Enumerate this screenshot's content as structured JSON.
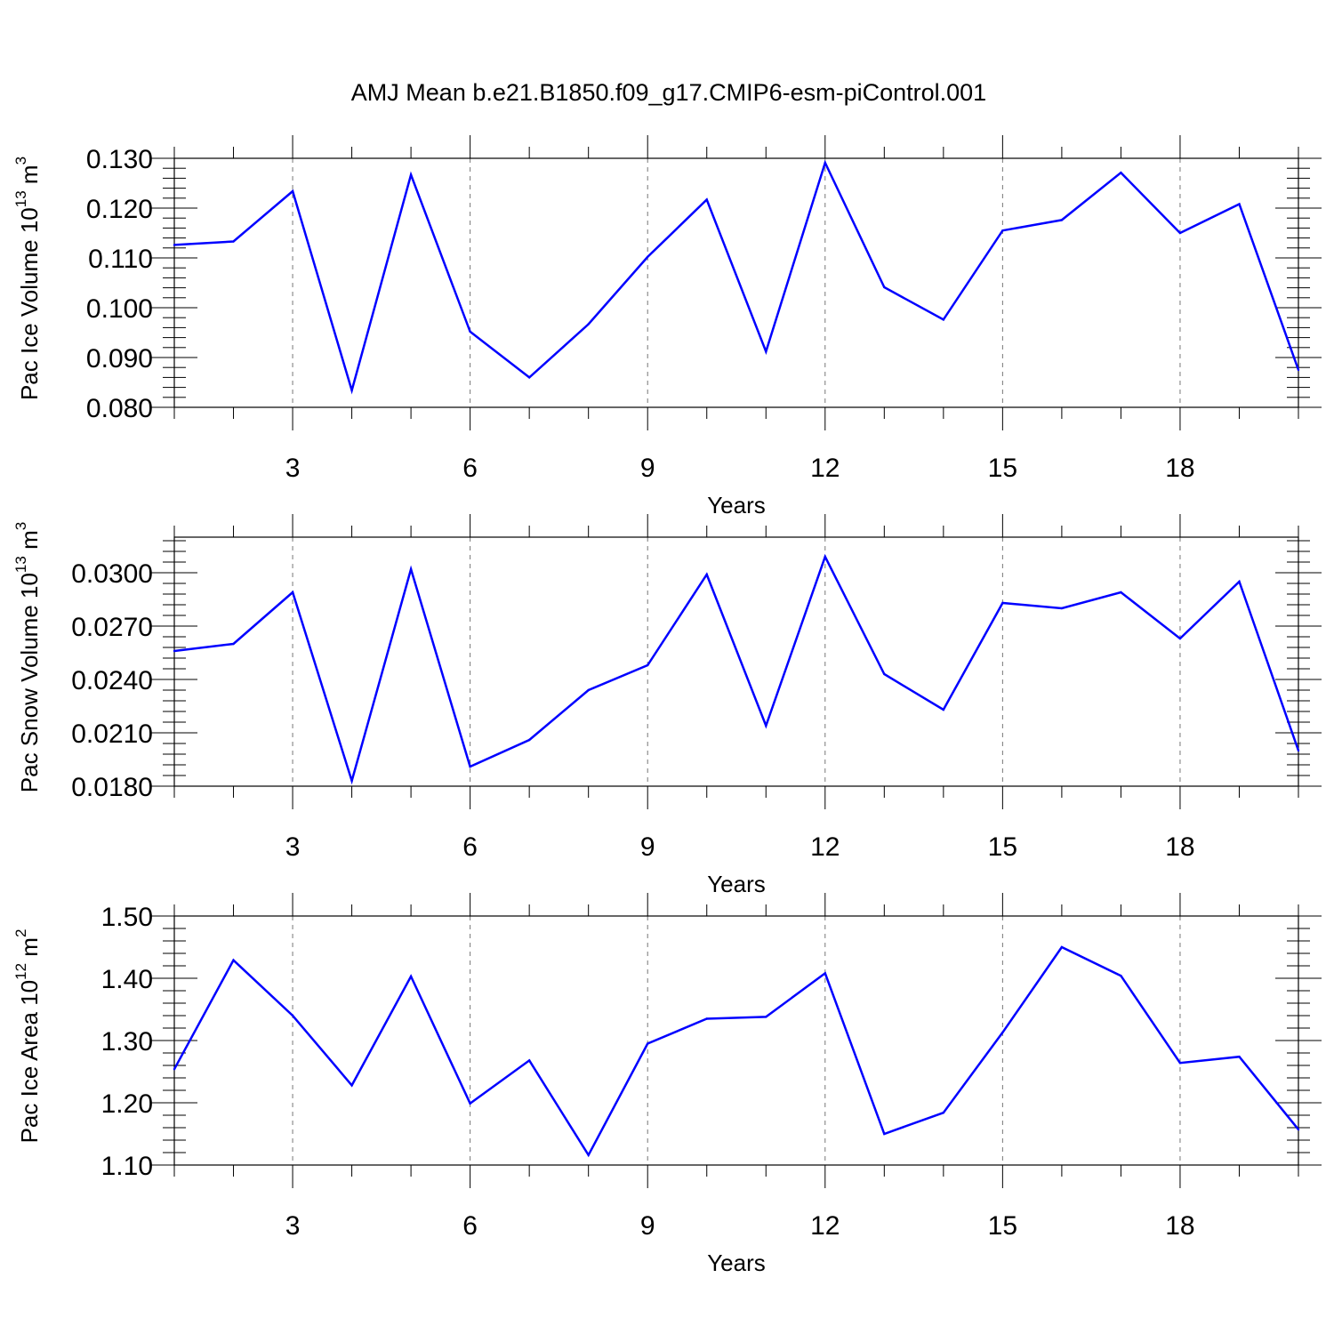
{
  "title": "AMJ Mean b.e21.B1850.f09_g17.CMIP6-esm-piControl.001",
  "chart_data": [
    {
      "type": "line",
      "xlabel": "Years",
      "ylabel": {
        "prefix": "Pac Ice Volume 10",
        "exponent": "13",
        "unit": " m",
        "unit_exponent": "3"
      },
      "xlim": [
        1,
        20
      ],
      "ylim": [
        0.08,
        0.13
      ],
      "xticks": [
        "3",
        "6",
        "9",
        "12",
        "15",
        "18"
      ],
      "yticks": [
        "0.080",
        "0.090",
        "0.100",
        "0.110",
        "0.120",
        "0.130"
      ],
      "grid": "vertical-dashed",
      "color": "#0000ff",
      "x": [
        1,
        2,
        3,
        4,
        5,
        6,
        7,
        8,
        9,
        10,
        11,
        12,
        13,
        14,
        15,
        16,
        17,
        18,
        19,
        20
      ],
      "values": [
        0.1126,
        0.1133,
        0.1234,
        0.0834,
        0.1267,
        0.0952,
        0.086,
        0.0967,
        0.1102,
        0.1217,
        0.0912,
        0.1291,
        0.1041,
        0.0976,
        0.1155,
        0.1176,
        0.1271,
        0.115,
        0.1208,
        0.0875
      ]
    },
    {
      "type": "line",
      "xlabel": "Years",
      "ylabel": {
        "prefix": "Pac Snow Volume 10",
        "exponent": "13",
        "unit": " m",
        "unit_exponent": "3"
      },
      "xlim": [
        1,
        20
      ],
      "ylim": [
        0.018,
        0.032
      ],
      "xticks": [
        "3",
        "6",
        "9",
        "12",
        "15",
        "18"
      ],
      "yticks": [
        "0.0180",
        "0.0210",
        "0.0240",
        "0.0270",
        "0.0300"
      ],
      "grid": "vertical-dashed",
      "color": "#0000ff",
      "x": [
        1,
        2,
        3,
        4,
        5,
        6,
        7,
        8,
        9,
        10,
        11,
        12,
        13,
        14,
        15,
        16,
        17,
        18,
        19,
        20
      ],
      "values": [
        0.0256,
        0.026,
        0.0289,
        0.0183,
        0.0302,
        0.0191,
        0.0206,
        0.0234,
        0.0248,
        0.0299,
        0.0214,
        0.0309,
        0.0243,
        0.0223,
        0.0283,
        0.028,
        0.0289,
        0.0263,
        0.0295,
        0.02
      ]
    },
    {
      "type": "line",
      "xlabel": "Years",
      "ylabel": {
        "prefix": "Pac Ice Area 10",
        "exponent": "12",
        "unit": " m",
        "unit_exponent": "2"
      },
      "xlim": [
        1,
        20
      ],
      "ylim": [
        1.1,
        1.5
      ],
      "xticks": [
        "3",
        "6",
        "9",
        "12",
        "15",
        "18"
      ],
      "yticks": [
        "1.10",
        "1.20",
        "1.30",
        "1.40",
        "1.50"
      ],
      "grid": "vertical-dashed",
      "color": "#0000ff",
      "x": [
        1,
        2,
        3,
        4,
        5,
        6,
        7,
        8,
        9,
        10,
        11,
        12,
        13,
        14,
        15,
        16,
        17,
        18,
        19,
        20
      ],
      "values": [
        1.254,
        1.429,
        1.34,
        1.228,
        1.403,
        1.199,
        1.268,
        1.116,
        1.295,
        1.335,
        1.338,
        1.408,
        1.15,
        1.184,
        1.313,
        1.45,
        1.404,
        1.264,
        1.274,
        1.157
      ]
    }
  ]
}
